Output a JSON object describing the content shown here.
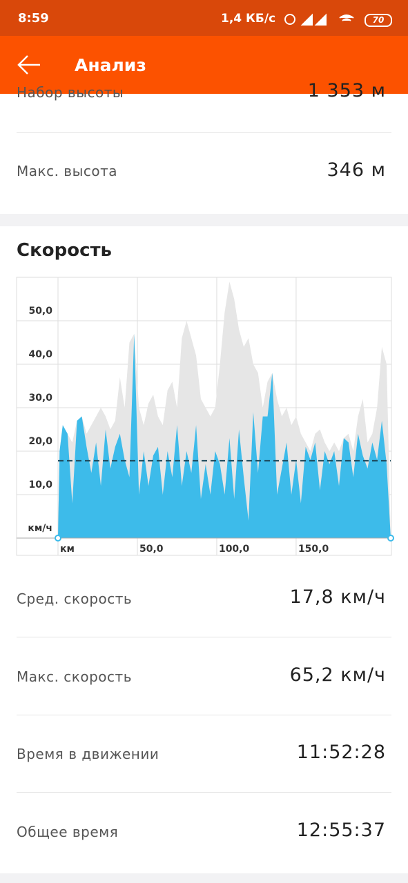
{
  "status_bar": {
    "time": "8:59",
    "speed": "1,4 КБ/с",
    "battery": "70"
  },
  "app_bar": {
    "title": "Анализ"
  },
  "elevation_rows": [
    {
      "label": "Набор высоты",
      "value": "1 353 м"
    },
    {
      "label": "Макс. высота",
      "value": "346 м"
    }
  ],
  "speed_section": {
    "title": "Скорость"
  },
  "chart_data": {
    "type": "area",
    "x": [
      0,
      1,
      3,
      6,
      9,
      12,
      15,
      18,
      21,
      24,
      27,
      30,
      33,
      36,
      39,
      42,
      45,
      48,
      51,
      54,
      57,
      60,
      63,
      66,
      69,
      72,
      75,
      78,
      81,
      84,
      87,
      90,
      93,
      96,
      99,
      102,
      105,
      108,
      111,
      114,
      117,
      120,
      123,
      126,
      129,
      132,
      135,
      138,
      141,
      144,
      147,
      150,
      153,
      156,
      159,
      162,
      165,
      168,
      171,
      174,
      177,
      180,
      183,
      186,
      189,
      192,
      195,
      198,
      201,
      204,
      207,
      209.6
    ],
    "series": [
      {
        "color": "#e6e6e6",
        "values": [
          0,
          20,
          26,
          24,
          22,
          27,
          28,
          24,
          26,
          28,
          30,
          28,
          25,
          27,
          37,
          30,
          45,
          47,
          30,
          26,
          31,
          33,
          28,
          26,
          34,
          36,
          30,
          46,
          50,
          46,
          42,
          32,
          30,
          28,
          30,
          40,
          52,
          59,
          55,
          48,
          44,
          46,
          40,
          38,
          30,
          36,
          38,
          32,
          28,
          30,
          26,
          28,
          24,
          22,
          20,
          24,
          25,
          22,
          20,
          22,
          20,
          23,
          24,
          20,
          28,
          32,
          22,
          24,
          30,
          44,
          40,
          0
        ]
      },
      {
        "color": "#3dbbea",
        "values": [
          0,
          20,
          26,
          24,
          8,
          27,
          28,
          21,
          15,
          22,
          12,
          25,
          16,
          21,
          24,
          18,
          14,
          47,
          10,
          20,
          12,
          19,
          21,
          10,
          20,
          14,
          26,
          12,
          20,
          15,
          26,
          9,
          17,
          10,
          20,
          17,
          10,
          23,
          9,
          25,
          14,
          4,
          29,
          15,
          28,
          28,
          38,
          10,
          16,
          22,
          10,
          18,
          8,
          21,
          18,
          22,
          11,
          20,
          17,
          20,
          12,
          23,
          22,
          14,
          24,
          19,
          16,
          22,
          18,
          27,
          17,
          0
        ]
      }
    ],
    "average": 17.8,
    "xlim": [
      0,
      209.6
    ],
    "ylim": [
      0,
      60
    ],
    "xticks": [
      {
        "value": 0,
        "label": "км"
      },
      {
        "value": 50,
        "label": "50,0"
      },
      {
        "value": 100,
        "label": "100,0"
      },
      {
        "value": 150,
        "label": "150,0"
      }
    ],
    "yticks": [
      {
        "value": 0,
        "label": "км/ч"
      },
      {
        "value": 10,
        "label": "10,0"
      },
      {
        "value": 20,
        "label": "20,0"
      },
      {
        "value": 30,
        "label": "30,0"
      },
      {
        "value": 40,
        "label": "40,0"
      },
      {
        "value": 50,
        "label": "50,0"
      }
    ],
    "grid": true
  },
  "stats": [
    {
      "label": "Сред. скорость",
      "value": "17,8 км/ч"
    },
    {
      "label": "Макс. скорость",
      "value": "65,2 км/ч"
    },
    {
      "label": "Время в движении",
      "value": "11:52:28"
    },
    {
      "label": "Общее время",
      "value": "12:55:37"
    }
  ]
}
